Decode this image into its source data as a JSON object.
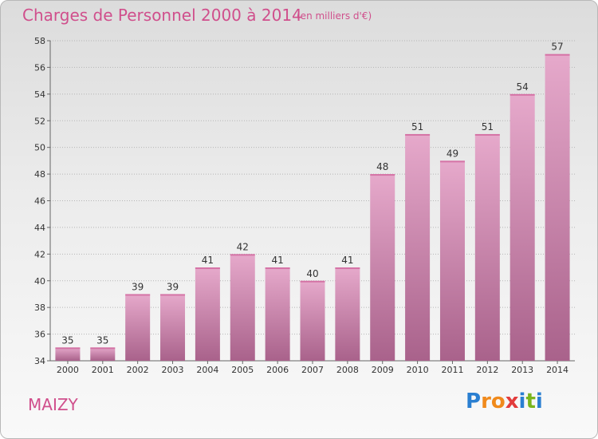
{
  "title": "Charges de Personnel 2000 à 2014",
  "subtitle": "(en milliers d'€)",
  "town": "MAIZY",
  "brand": {
    "letters": [
      "P",
      "r",
      "o",
      "x",
      "i",
      "t",
      "i"
    ],
    "colors": [
      "#2a7fd1",
      "#f08a1c",
      "#f08a1c",
      "#e23c3c",
      "#2a7fd1",
      "#7ab51d",
      "#2a7fd1"
    ]
  },
  "colors": {
    "accent": "#d04f8c",
    "bar_top": "#e6a9cb",
    "bar_bottom": "#a9628b"
  },
  "chart_data": {
    "type": "bar",
    "title": "Charges de Personnel 2000 à 2014",
    "subtitle": "(en milliers d'€)",
    "categories": [
      "2000",
      "2001",
      "2002",
      "2003",
      "2004",
      "2005",
      "2006",
      "2007",
      "2008",
      "2009",
      "2010",
      "2011",
      "2012",
      "2013",
      "2014"
    ],
    "values": [
      35,
      35,
      39,
      39,
      41,
      42,
      41,
      40,
      41,
      48,
      51,
      49,
      51,
      54,
      57
    ],
    "ylim": [
      34,
      58
    ],
    "yticks": [
      34,
      36,
      38,
      40,
      42,
      44,
      46,
      48,
      50,
      52,
      54,
      56,
      58
    ],
    "grid": true,
    "legend": false
  }
}
